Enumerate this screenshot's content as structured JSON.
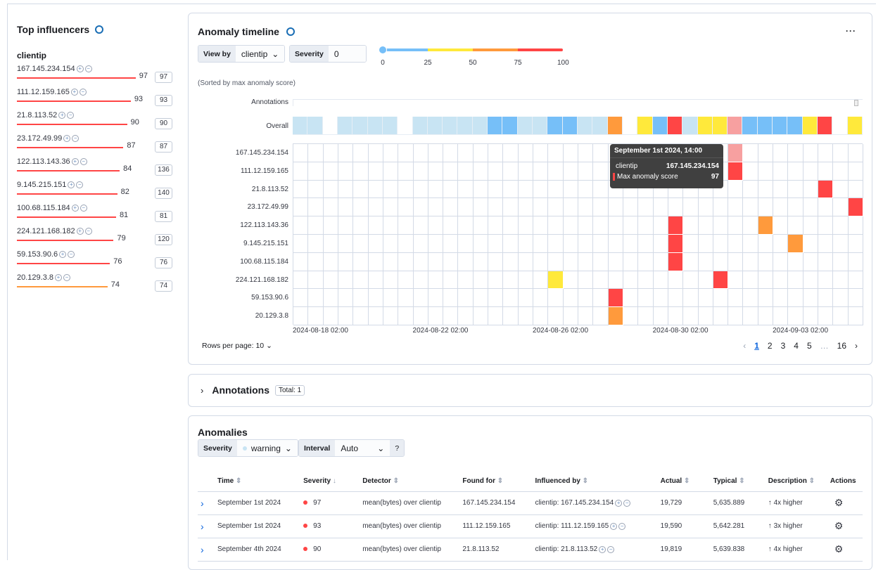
{
  "influencers": {
    "title": "Top influencers",
    "field": "clientip",
    "items": [
      {
        "name": "167.145.234.154",
        "score": 97,
        "count": "97",
        "color": "#ff4545"
      },
      {
        "name": "111.12.159.165",
        "score": 93,
        "count": "93",
        "color": "#ff4545"
      },
      {
        "name": "21.8.113.52",
        "score": 90,
        "count": "90",
        "color": "#ff4545"
      },
      {
        "name": "23.172.49.99",
        "score": 87,
        "count": "87",
        "color": "#ff4545"
      },
      {
        "name": "122.113.143.36",
        "score": 84,
        "count": "136",
        "color": "#ff4545"
      },
      {
        "name": "9.145.215.151",
        "score": 82,
        "count": "140",
        "color": "#ff4545"
      },
      {
        "name": "100.68.115.184",
        "score": 81,
        "count": "81",
        "color": "#ff4545"
      },
      {
        "name": "224.121.168.182",
        "score": 79,
        "count": "120",
        "color": "#ff4545"
      },
      {
        "name": "59.153.90.6",
        "score": 76,
        "count": "76",
        "color": "#ff4545"
      },
      {
        "name": "20.129.3.8",
        "score": 74,
        "count": "74",
        "color": "#ff9a3c"
      }
    ]
  },
  "timeline": {
    "title": "Anomaly timeline",
    "view_by_label": "View by",
    "view_by_value": "clientip",
    "severity_label": "Severity",
    "severity_value": "0",
    "slider_ticks": [
      "0",
      "25",
      "50",
      "75",
      "100"
    ],
    "sorted_note": "(Sorted by max anomaly score)",
    "annotations_label": "Annotations",
    "overall_label": "Overall",
    "rows": [
      "167.145.234.154",
      "111.12.159.165",
      "21.8.113.52",
      "23.172.49.99",
      "122.113.143.36",
      "9.145.215.151",
      "100.68.115.184",
      "224.121.168.182",
      "59.153.90.6",
      "20.129.3.8"
    ],
    "x_labels": [
      "2024-08-18 02:00",
      "2024-08-22 02:00",
      "2024-08-26 02:00",
      "2024-08-30 02:00",
      "2024-09-03 02:00"
    ],
    "columns": 38,
    "overall": [
      "l",
      "l",
      "w",
      "l",
      "l",
      "l",
      "l",
      "w",
      "l",
      "l",
      "l",
      "l",
      "l",
      "b",
      "b",
      "l",
      "l",
      "b",
      "b",
      "l",
      "l",
      "o",
      "w",
      "y",
      "b",
      "r",
      "l",
      "y",
      "y",
      "p",
      "b",
      "b",
      "b",
      "b",
      "y",
      "r",
      "w",
      "y"
    ],
    "cells": [
      [
        0,
        29,
        "p"
      ],
      [
        1,
        29,
        "r"
      ],
      [
        2,
        35,
        "r"
      ],
      [
        3,
        37,
        "r"
      ],
      [
        4,
        25,
        "r"
      ],
      [
        4,
        31,
        "o"
      ],
      [
        5,
        25,
        "r"
      ],
      [
        5,
        33,
        "o"
      ],
      [
        6,
        25,
        "r"
      ],
      [
        7,
        17,
        "y"
      ],
      [
        7,
        28,
        "r"
      ],
      [
        8,
        21,
        "r"
      ],
      [
        9,
        21,
        "o"
      ]
    ],
    "colors": {
      "l": "#c8e4f3",
      "b": "#76bff8",
      "y": "#ffe93b",
      "o": "#ff9a3c",
      "r": "#ff4545",
      "p": "#f7a0a0",
      "w": "#ffffff"
    },
    "tooltip": {
      "title": "September 1st 2024, 14:00",
      "field": "clientip",
      "value": "167.145.234.154",
      "score_label": "Max anomaly score",
      "score": "97"
    },
    "rows_per_page": "Rows per page: 10",
    "pages": [
      "1",
      "2",
      "3",
      "4",
      "5",
      "…",
      "16"
    ]
  },
  "annotations": {
    "title": "Annotations",
    "total": "Total: 1"
  },
  "anomalies": {
    "title": "Anomalies",
    "severity_label": "Severity",
    "severity_value": "warning",
    "interval_label": "Interval",
    "interval_value": "Auto",
    "columns": [
      "Time",
      "Severity",
      "Detector",
      "Found for",
      "Influenced by",
      "Actual",
      "Typical",
      "Description",
      "Actions"
    ],
    "rows": [
      {
        "time": "September 1st 2024",
        "score": "97",
        "detector": "mean(bytes) over clientip",
        "found": "167.145.234.154",
        "influenced": "clientip: 167.145.234.154",
        "actual": "19,729",
        "typical": "5,635.889",
        "desc": "4x higher"
      },
      {
        "time": "September 1st 2024",
        "score": "93",
        "detector": "mean(bytes) over clientip",
        "found": "111.12.159.165",
        "influenced": "clientip: 111.12.159.165",
        "actual": "19,590",
        "typical": "5,642.281",
        "desc": "3x higher"
      },
      {
        "time": "September 4th 2024",
        "score": "90",
        "detector": "mean(bytes) over clientip",
        "found": "21.8.113.52",
        "influenced": "clientip: 21.8.113.52",
        "actual": "19,819",
        "typical": "5,639.838",
        "desc": "4x higher"
      }
    ]
  }
}
